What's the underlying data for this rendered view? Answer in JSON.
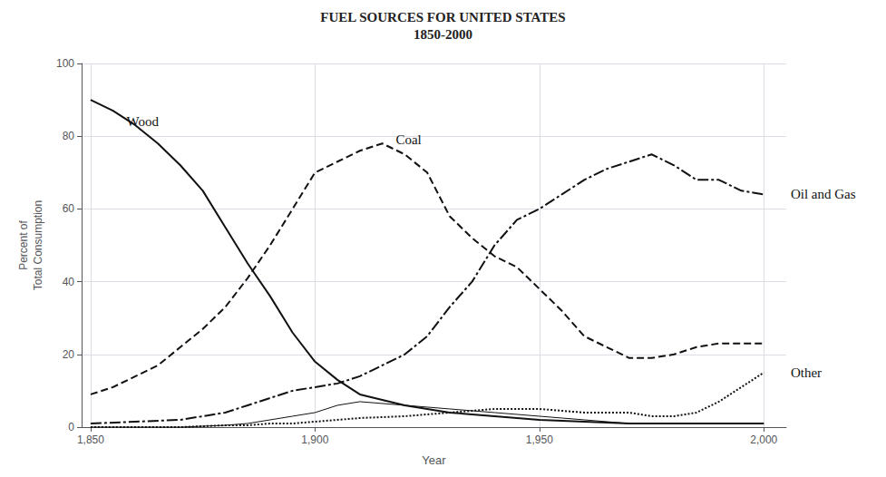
{
  "chart_data": {
    "type": "line",
    "title": "FUEL SOURCES FOR UNITED STATES",
    "subtitle": "1850-2000",
    "xlabel": "Year",
    "ylabel": "Percent of\nTotal Consumption",
    "xlim": [
      1848,
      2005
    ],
    "ylim": [
      0,
      100
    ],
    "xticks": [
      1850,
      1900,
      1950,
      2000
    ],
    "yticks": [
      0,
      20,
      40,
      60,
      80,
      100
    ],
    "grid": true,
    "series": [
      {
        "name": "Wood",
        "color": "#111111",
        "line_style": "solid",
        "x": [
          1850,
          1855,
          1860,
          1865,
          1870,
          1875,
          1880,
          1885,
          1890,
          1895,
          1900,
          1905,
          1910,
          1920,
          1930,
          1940,
          1950,
          1960,
          1970,
          1980,
          1990,
          2000
        ],
        "values": [
          90,
          87,
          83,
          78,
          72,
          65,
          55,
          45,
          36,
          26,
          18,
          13,
          9,
          6,
          4,
          3,
          2,
          1.5,
          1,
          1,
          1,
          1
        ]
      },
      {
        "name": "Coal",
        "color": "#111111",
        "line_style": "dashed",
        "x": [
          1850,
          1855,
          1860,
          1865,
          1870,
          1875,
          1880,
          1885,
          1890,
          1895,
          1900,
          1905,
          1910,
          1915,
          1920,
          1925,
          1930,
          1935,
          1940,
          1945,
          1950,
          1955,
          1960,
          1965,
          1970,
          1975,
          1980,
          1985,
          1990,
          1995,
          2000
        ],
        "values": [
          9,
          11,
          14,
          17,
          22,
          27,
          33,
          41,
          50,
          60,
          70,
          73,
          76,
          78,
          75,
          70,
          58,
          52,
          47,
          44,
          38,
          32,
          25,
          22,
          19,
          19,
          20,
          22,
          23,
          23,
          23
        ]
      },
      {
        "name": "Oil and Gas",
        "color": "#111111",
        "line_style": "dashdot",
        "x": [
          1850,
          1860,
          1870,
          1875,
          1880,
          1885,
          1890,
          1895,
          1900,
          1905,
          1910,
          1915,
          1920,
          1925,
          1930,
          1935,
          1940,
          1945,
          1950,
          1955,
          1960,
          1965,
          1970,
          1975,
          1980,
          1985,
          1990,
          1995,
          2000
        ],
        "values": [
          1,
          1.5,
          2,
          3,
          4,
          6,
          8,
          10,
          11,
          12,
          14,
          17,
          20,
          25,
          33,
          40,
          50,
          57,
          60,
          64,
          68,
          71,
          73,
          75,
          72,
          68,
          68,
          65,
          64
        ]
      },
      {
        "name": "Other",
        "color": "#111111",
        "line_style": "dotted",
        "x": [
          1850,
          1860,
          1870,
          1880,
          1885,
          1890,
          1895,
          1900,
          1905,
          1910,
          1920,
          1930,
          1940,
          1950,
          1955,
          1960,
          1965,
          1970,
          1975,
          1980,
          1985,
          1990,
          1995,
          2000
        ],
        "values": [
          0,
          0,
          0,
          0.5,
          0.5,
          1,
          1,
          1.5,
          2,
          2.5,
          3,
          4,
          5,
          5,
          4.5,
          4,
          4,
          4,
          3,
          3,
          4,
          7,
          11,
          15
        ]
      },
      {
        "color": "#111111",
        "line_style": "solid",
        "x": [
          1850,
          1860,
          1870,
          1880,
          1885,
          1890,
          1895,
          1900,
          1905,
          1910,
          1920,
          1930,
          1940,
          1950,
          1960,
          1970,
          1980,
          1990,
          2000
        ],
        "values": [
          0,
          0,
          0,
          0.5,
          1,
          2,
          3,
          4,
          6,
          7,
          6,
          5,
          4,
          3,
          2,
          1,
          1,
          1,
          1
        ]
      }
    ],
    "annotations": [
      {
        "text": "Wood",
        "x": 1858,
        "y": 84
      },
      {
        "text": "Coal",
        "x": 1918,
        "y": 79
      },
      {
        "text": "Oil and Gas",
        "x": 2006,
        "y": 64
      },
      {
        "text": "Other",
        "x": 2006,
        "y": 15
      }
    ]
  }
}
